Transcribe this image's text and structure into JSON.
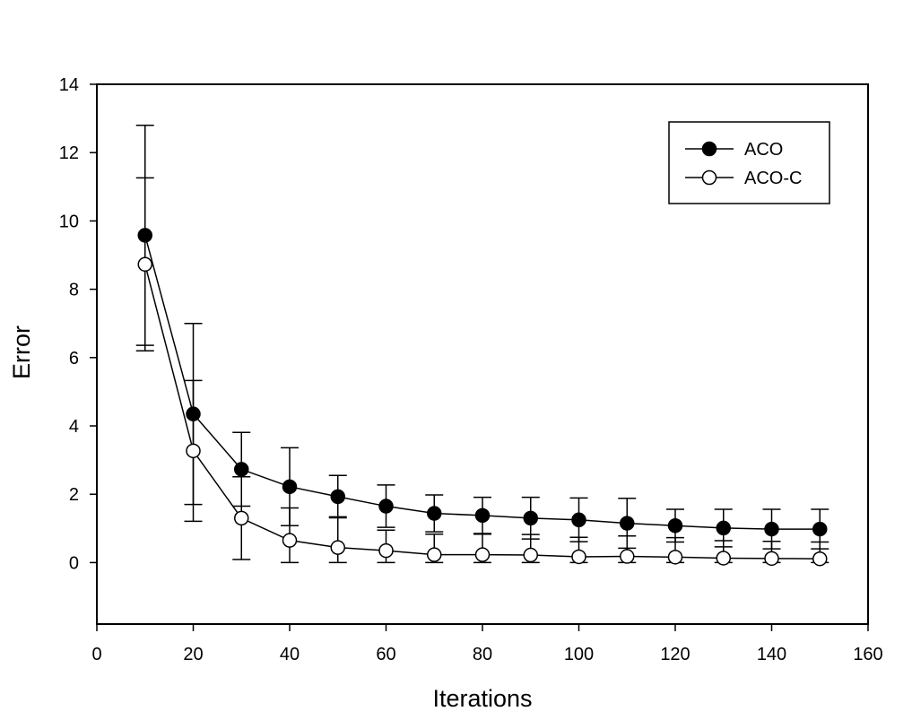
{
  "chart_data": {
    "type": "line",
    "title": "",
    "xlabel": "Iterations",
    "ylabel": "Error",
    "xlim": [
      0,
      160
    ],
    "ylim": [
      -1.8,
      14
    ],
    "x_ticks": [
      0,
      20,
      40,
      60,
      80,
      100,
      120,
      140,
      160
    ],
    "y_ticks": [
      0,
      2,
      4,
      6,
      8,
      10,
      12,
      14
    ],
    "grid": false,
    "legend_position": "top-right",
    "x": [
      10,
      20,
      30,
      40,
      50,
      60,
      70,
      80,
      90,
      100,
      110,
      120,
      130,
      140,
      150
    ],
    "series": [
      {
        "name": "ACO",
        "marker": "filled-circle",
        "color": "#000000",
        "values": [
          9.58,
          4.35,
          2.73,
          2.22,
          1.93,
          1.65,
          1.44,
          1.38,
          1.3,
          1.25,
          1.15,
          1.08,
          1.01,
          0.98,
          0.98
        ],
        "error": [
          3.22,
          2.65,
          1.08,
          1.14,
          0.62,
          0.62,
          0.54,
          0.53,
          0.61,
          0.64,
          0.73,
          0.48,
          0.55,
          0.58,
          0.58
        ]
      },
      {
        "name": "ACO-C",
        "marker": "open-circle",
        "color": "#000000",
        "values": [
          8.73,
          3.27,
          1.3,
          0.65,
          0.44,
          0.35,
          0.23,
          0.23,
          0.22,
          0.17,
          0.18,
          0.16,
          0.13,
          0.12,
          0.11
        ],
        "error": [
          2.53,
          2.06,
          1.21,
          0.95,
          0.9,
          0.6,
          0.6,
          0.6,
          0.6,
          0.57,
          0.6,
          0.57,
          0.51,
          0.5,
          0.49
        ]
      }
    ]
  }
}
